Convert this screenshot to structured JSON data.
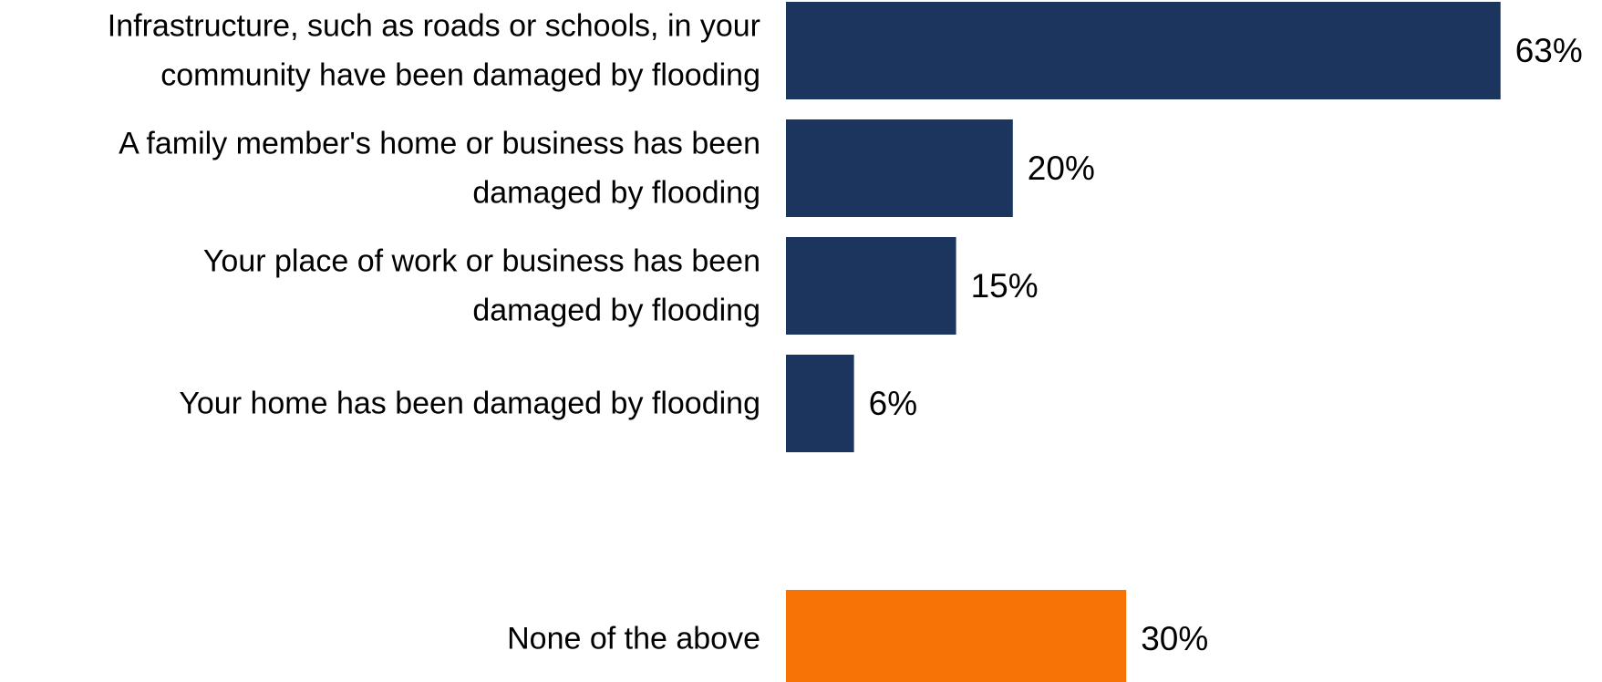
{
  "colors": {
    "primary_bar": "#1c355e",
    "highlight_bar": "#f77305",
    "text": "#000000"
  },
  "chart_data": {
    "type": "bar",
    "orientation": "horizontal",
    "categories": [
      [
        "Infrastructure, such as roads or schools, in your",
        "community have been damaged by flooding"
      ],
      [
        "A family member's home or business has been",
        "damaged by flooding"
      ],
      [
        "Your place of work or business has been",
        "damaged by flooding"
      ],
      [
        "Your home has been damaged by flooding"
      ],
      [
        "None of the above"
      ]
    ],
    "values": [
      63,
      20,
      15,
      6,
      30
    ],
    "value_labels": [
      "63%",
      "20%",
      "15%",
      "6%",
      "30%"
    ],
    "bar_colors": [
      "#1c355e",
      "#1c355e",
      "#1c355e",
      "#1c355e",
      "#f77305"
    ],
    "unit": "%",
    "xlim": [
      0,
      100
    ],
    "grid": false,
    "legend": "none"
  }
}
